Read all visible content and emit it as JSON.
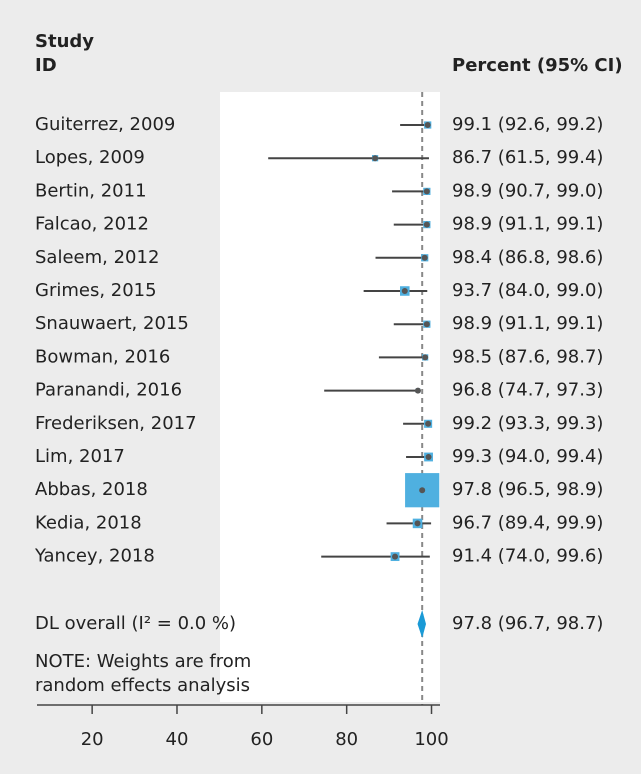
{
  "chart_data": {
    "type": "forest",
    "header": {
      "study": [
        "Study",
        "ID"
      ],
      "estimate": "Percent (95% CI)"
    },
    "categories": [
      "Guiterrez, 2009",
      "Lopes, 2009",
      "Bertin, 2011",
      "Falcao, 2012",
      "Saleem, 2012",
      "Grimes, 2015",
      "Snauwaert, 2015",
      "Bowman, 2016",
      "Paranandi, 2016",
      "Frederiksen, 2017",
      "Lim, 2017",
      "Abbas, 2018",
      "Kedia, 2018",
      "Yancey, 2018"
    ],
    "values": [
      99.1,
      86.7,
      98.9,
      98.9,
      98.4,
      93.7,
      98.9,
      98.5,
      96.8,
      99.2,
      99.3,
      97.8,
      96.7,
      91.4
    ],
    "ci_lower": [
      92.6,
      61.5,
      90.7,
      91.1,
      86.8,
      84.0,
      91.1,
      87.6,
      74.7,
      93.3,
      94.0,
      96.5,
      89.4,
      74.0
    ],
    "ci_upper": [
      99.2,
      99.4,
      99.0,
      99.1,
      98.6,
      99.0,
      99.1,
      98.7,
      97.3,
      99.3,
      99.4,
      98.9,
      99.9,
      99.6
    ],
    "value_labels": [
      "99.1 (92.6, 99.2)",
      "86.7 (61.5, 99.4)",
      "98.9 (90.7, 99.0)",
      "98.9 (91.1, 99.1)",
      "98.4 (86.8, 98.6)",
      "93.7 (84.0, 99.0)",
      "98.9 (91.1, 99.1)",
      "98.5 (87.6, 98.7)",
      "96.8 (74.7, 97.3)",
      "99.2 (93.3, 99.3)",
      "99.3 (94.0, 99.4)",
      "97.8 (96.5, 98.9)",
      "96.7 (89.4, 99.9)",
      "91.4 (74.0, 99.6)"
    ],
    "weights": [
      2,
      1.5,
      2,
      2,
      2,
      3.5,
      2,
      1.5,
      0.8,
      2.5,
      3,
      45,
      3.5,
      3
    ],
    "overall": {
      "label": "DL overall (I² = 0.0 %)",
      "value": 97.8,
      "ci_lower": 96.7,
      "ci_upper": 98.7,
      "value_label": "97.8 (96.7, 98.7)"
    },
    "note": [
      "NOTE: Weights are from",
      "random effects analysis"
    ],
    "xlim": [
      7,
      102
    ],
    "xticks": [
      20,
      40,
      60,
      80,
      100
    ],
    "marker_color": "#4fb0e0",
    "point_color": "#555555",
    "ci_color": "#444444",
    "diamond_color": "#1a9ad6"
  }
}
